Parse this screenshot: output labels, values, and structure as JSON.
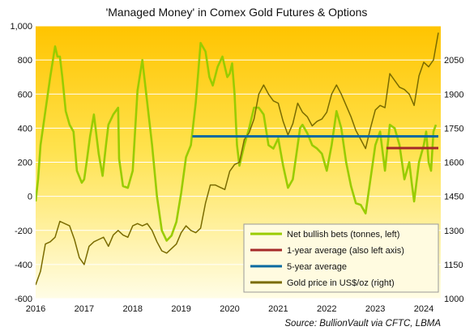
{
  "chart_data": {
    "type": "line",
    "title": "'Managed Money' in Comex Gold Futures & Options",
    "source_label": "Source:",
    "source_text": "BullionVault via CFTC, LBMA",
    "x_ticks": [
      "2016",
      "2017",
      "2018",
      "2019",
      "2020",
      "2021",
      "2022",
      "2023",
      "2024"
    ],
    "x_range": [
      2016,
      2024.35
    ],
    "left_axis": {
      "range": [
        -600,
        1000
      ],
      "ticks": [
        "1,000",
        "800",
        "600",
        "400",
        "200",
        "0",
        "-200",
        "-400",
        "-600"
      ],
      "tick_values": [
        1000,
        800,
        600,
        400,
        200,
        0,
        -200,
        -400,
        -600
      ]
    },
    "right_axis": {
      "range": [
        1000,
        2200
      ],
      "ticks": [
        "2050",
        "1900",
        "1750",
        "1600",
        "1450",
        "1300",
        "1150",
        "1000"
      ],
      "tick_values": [
        2050,
        1900,
        1750,
        1600,
        1450,
        1300,
        1150,
        1000
      ]
    },
    "grid": "horizontal",
    "legend_position": "bottom-right",
    "colors": {
      "bg_top": "#ffc400",
      "bg_bottom": "#fffde6",
      "grid": "#ffffff",
      "net_bets": "#99cc00",
      "one_year": "#a52a2a",
      "five_year": "#0a6aa0",
      "gold_price": "#7a6b00"
    },
    "series": [
      {
        "name": "Net bullish bets (tonnes, left)",
        "axis": "left",
        "x": [
          2016.0,
          2016.05,
          2016.1,
          2016.2,
          2016.3,
          2016.4,
          2016.45,
          2016.5,
          2016.55,
          2016.62,
          2016.7,
          2016.78,
          2016.85,
          2016.95,
          2017.0,
          2017.05,
          2017.12,
          2017.2,
          2017.3,
          2017.38,
          2017.45,
          2017.5,
          2017.6,
          2017.7,
          2017.72,
          2017.8,
          2017.9,
          2018.0,
          2018.1,
          2018.2,
          2018.3,
          2018.4,
          2018.5,
          2018.6,
          2018.7,
          2018.8,
          2018.9,
          2019.0,
          2019.1,
          2019.2,
          2019.3,
          2019.4,
          2019.5,
          2019.58,
          2019.65,
          2019.75,
          2019.85,
          2019.95,
          2020.0,
          2020.05,
          2020.1,
          2020.15,
          2020.2,
          2020.3,
          2020.4,
          2020.5,
          2020.6,
          2020.7,
          2020.8,
          2020.9,
          2021.0,
          2021.1,
          2021.2,
          2021.3,
          2021.4,
          2021.45,
          2021.5,
          2021.6,
          2021.7,
          2021.8,
          2021.9,
          2022.0,
          2022.1,
          2022.2,
          2022.3,
          2022.4,
          2022.5,
          2022.6,
          2022.7,
          2022.8,
          2022.9,
          2023.0,
          2023.1,
          2023.2,
          2023.3,
          2023.4,
          2023.5,
          2023.6,
          2023.7,
          2023.75,
          2023.8,
          2023.9,
          2024.0,
          2024.05,
          2024.1,
          2024.15,
          2024.2,
          2024.25
        ],
        "values": [
          -30,
          100,
          300,
          500,
          700,
          880,
          820,
          820,
          700,
          500,
          420,
          380,
          150,
          80,
          100,
          200,
          350,
          480,
          250,
          120,
          300,
          420,
          480,
          520,
          220,
          60,
          50,
          150,
          620,
          800,
          550,
          300,
          0,
          -200,
          -260,
          -230,
          -150,
          20,
          230,
          300,
          550,
          900,
          850,
          700,
          650,
          760,
          820,
          700,
          720,
          780,
          600,
          300,
          180,
          300,
          400,
          520,
          520,
          480,
          300,
          280,
          340,
          180,
          50,
          100,
          300,
          400,
          420,
          370,
          300,
          280,
          250,
          150,
          300,
          500,
          400,
          200,
          60,
          -40,
          -50,
          -100,
          100,
          300,
          380,
          150,
          420,
          400,
          300,
          100,
          200,
          80,
          -30,
          200,
          300,
          380,
          200,
          150,
          380,
          420
        ],
        "values_note": "approximate reading"
      },
      {
        "name": "1-year average (also left axis)",
        "axis": "left",
        "x": [
          2023.23,
          2024.3
        ],
        "values": [
          283,
          283
        ]
      },
      {
        "name": "5-year average",
        "axis": "left",
        "x": [
          2019.23,
          2024.3
        ],
        "values": [
          352,
          352
        ]
      },
      {
        "name": "Gold price in US$/oz (right)",
        "axis": "right",
        "x": [
          2016.0,
          2016.1,
          2016.2,
          2016.3,
          2016.4,
          2016.5,
          2016.6,
          2016.7,
          2016.8,
          2016.9,
          2017.0,
          2017.1,
          2017.2,
          2017.3,
          2017.4,
          2017.5,
          2017.6,
          2017.7,
          2017.8,
          2017.9,
          2018.0,
          2018.1,
          2018.2,
          2018.3,
          2018.4,
          2018.5,
          2018.6,
          2018.7,
          2018.8,
          2018.9,
          2019.0,
          2019.1,
          2019.2,
          2019.3,
          2019.4,
          2019.5,
          2019.6,
          2019.7,
          2019.8,
          2019.9,
          2020.0,
          2020.1,
          2020.2,
          2020.3,
          2020.4,
          2020.5,
          2020.6,
          2020.7,
          2020.8,
          2020.9,
          2021.0,
          2021.1,
          2021.2,
          2021.3,
          2021.4,
          2021.5,
          2021.6,
          2021.7,
          2021.8,
          2021.9,
          2022.0,
          2022.1,
          2022.2,
          2022.3,
          2022.4,
          2022.5,
          2022.6,
          2022.7,
          2022.8,
          2022.9,
          2023.0,
          2023.1,
          2023.2,
          2023.3,
          2023.4,
          2023.5,
          2023.6,
          2023.7,
          2023.8,
          2023.9,
          2024.0,
          2024.1,
          2024.2,
          2024.3
        ],
        "values": [
          1060,
          1120,
          1240,
          1250,
          1270,
          1340,
          1330,
          1320,
          1260,
          1180,
          1150,
          1230,
          1250,
          1260,
          1270,
          1230,
          1280,
          1300,
          1280,
          1270,
          1320,
          1330,
          1320,
          1330,
          1300,
          1250,
          1210,
          1200,
          1220,
          1240,
          1290,
          1320,
          1300,
          1290,
          1310,
          1420,
          1500,
          1500,
          1490,
          1480,
          1560,
          1590,
          1600,
          1700,
          1730,
          1790,
          1900,
          1940,
          1900,
          1870,
          1860,
          1780,
          1720,
          1770,
          1860,
          1820,
          1800,
          1760,
          1780,
          1790,
          1820,
          1900,
          1940,
          1900,
          1850,
          1800,
          1740,
          1700,
          1660,
          1750,
          1830,
          1850,
          1840,
          1990,
          1960,
          1930,
          1920,
          1900,
          1850,
          1980,
          2040,
          2020,
          2050,
          2170
        ],
        "values_note": "approximate reading"
      }
    ]
  }
}
